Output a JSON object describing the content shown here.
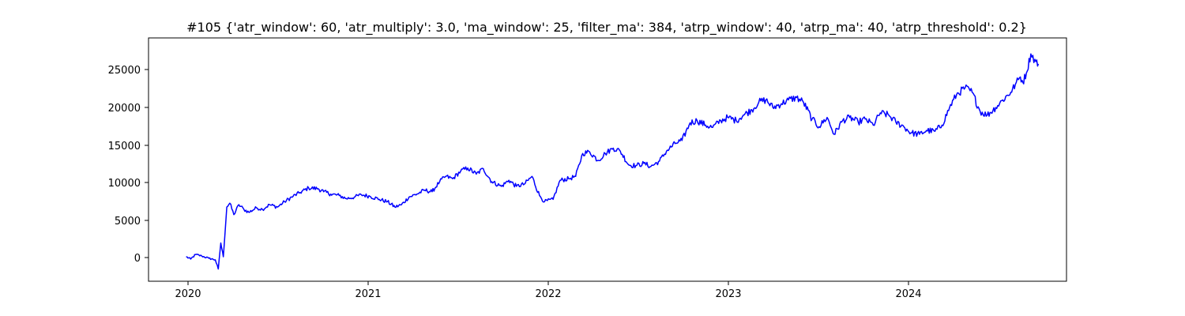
{
  "chart_data": {
    "type": "line",
    "title": "#105 {'atr_window': 60, 'atr_multiply': 3.0, 'ma_window': 25, 'filter_ma': 384, 'atrp_window': 40, 'atrp_ma': 40, 'atrp_threshold': 0.2}",
    "xlabel": "",
    "ylabel": "",
    "x_ticks": [
      "2020",
      "2021",
      "2022",
      "2023",
      "2024"
    ],
    "y_ticks": [
      "0",
      "5000",
      "10000",
      "15000",
      "20000",
      "25000"
    ],
    "xlim": [
      "2019-10-18",
      "2024-10-20"
    ],
    "ylim": [
      -3200,
      28600
    ],
    "grid": false,
    "line_color": "#0000ff",
    "series": [
      {
        "x": [
          "2020-01-01",
          "2020-01-10",
          "2020-01-20",
          "2020-02-01",
          "2020-02-15",
          "2020-02-28",
          "2020-03-05",
          "2020-03-10",
          "2020-03-15",
          "2020-03-22",
          "2020-03-28",
          "2020-04-05",
          "2020-04-15",
          "2020-04-25",
          "2020-05-05",
          "2020-05-20",
          "2020-06-01",
          "2020-06-15",
          "2020-07-01",
          "2020-07-15",
          "2020-08-01",
          "2020-08-15",
          "2020-09-01",
          "2020-09-20",
          "2020-10-01",
          "2020-10-15",
          "2020-11-01",
          "2020-11-15",
          "2020-12-01",
          "2020-12-15",
          "2021-01-01",
          "2021-01-20",
          "2021-02-05",
          "2021-02-20",
          "2021-03-05",
          "2021-03-20",
          "2021-04-05",
          "2021-04-20",
          "2021-05-05",
          "2021-05-20",
          "2021-06-01",
          "2021-06-15",
          "2021-07-01",
          "2021-07-15",
          "2021-08-01",
          "2021-08-15",
          "2021-09-01",
          "2021-09-20",
          "2021-10-05",
          "2021-10-20",
          "2021-11-05",
          "2021-11-20",
          "2021-12-05",
          "2021-12-15",
          "2022-01-01",
          "2022-01-15",
          "2022-02-01",
          "2022-02-15",
          "2022-03-01",
          "2022-03-15",
          "2022-04-01",
          "2022-04-15",
          "2022-05-01",
          "2022-05-15",
          "2022-06-01",
          "2022-06-15",
          "2022-07-01",
          "2022-07-15",
          "2022-08-01",
          "2022-08-15",
          "2022-09-01",
          "2022-09-15",
          "2022-10-01",
          "2022-10-15",
          "2022-11-01",
          "2022-11-15",
          "2022-12-01",
          "2022-12-15",
          "2023-01-01",
          "2023-01-15",
          "2023-02-01",
          "2023-02-15",
          "2023-03-01",
          "2023-03-15",
          "2023-04-01",
          "2023-04-15",
          "2023-05-01",
          "2023-05-15",
          "2023-06-01",
          "2023-06-15",
          "2023-07-01",
          "2023-07-15",
          "2023-08-01",
          "2023-08-15",
          "2023-09-01",
          "2023-09-15",
          "2023-10-01",
          "2023-10-15",
          "2023-11-01",
          "2023-11-15",
          "2023-12-01",
          "2023-12-15",
          "2024-01-01",
          "2024-01-15",
          "2024-02-01",
          "2024-02-15",
          "2024-03-01",
          "2024-03-15",
          "2024-04-01",
          "2024-04-15",
          "2024-05-01",
          "2024-05-15",
          "2024-06-01",
          "2024-06-15",
          "2024-07-01",
          "2024-07-10",
          "2024-07-20",
          "2024-07-25",
          "2024-08-01",
          "2024-08-10",
          "2024-08-20",
          "2024-08-25"
        ],
        "y": [
          0,
          -300,
          300,
          100,
          -200,
          -400,
          -1600,
          1800,
          0,
          6500,
          7000,
          5500,
          6800,
          6200,
          5800,
          6400,
          6200,
          6800,
          6500,
          7200,
          7900,
          8400,
          9000,
          8900,
          8500,
          8200,
          8000,
          7600,
          7800,
          8100,
          7900,
          7500,
          7200,
          6500,
          6800,
          7800,
          8200,
          8700,
          8500,
          9800,
          10500,
          10200,
          11200,
          11600,
          10800,
          11500,
          9800,
          9200,
          10000,
          9200,
          9500,
          10500,
          8000,
          7200,
          7500,
          10000,
          10200,
          10500,
          13500,
          13700,
          12600,
          13500,
          14200,
          13800,
          12000,
          11900,
          12200,
          11800,
          12500,
          13800,
          14800,
          15200,
          17500,
          17800,
          17200,
          16900,
          17800,
          18200,
          17800,
          18500,
          19200,
          20200,
          20500,
          19500,
          20000,
          20500,
          20800,
          20200,
          18000,
          17000,
          18200,
          16000,
          17800,
          18200,
          17600,
          18000,
          17200,
          18800,
          18500,
          17600,
          17000,
          16200,
          16000,
          16500,
          16400,
          17200,
          19500,
          21200,
          22100,
          21500,
          19000,
          18500,
          19500,
          20500,
          21500,
          22500,
          23500,
          22800,
          24000,
          26500,
          25500,
          25200
        ]
      }
    ]
  }
}
